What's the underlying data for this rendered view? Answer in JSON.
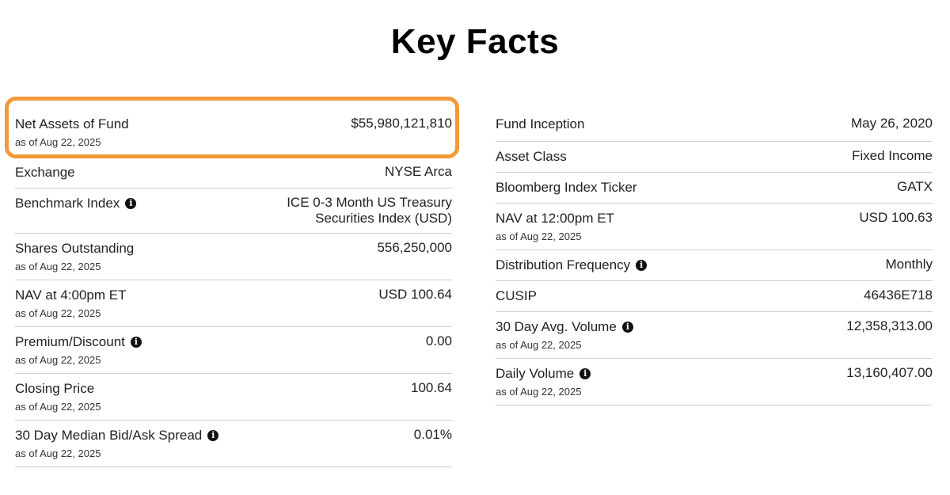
{
  "page": {
    "title": "Key Facts"
  },
  "highlight_color": "#f19a38",
  "left": {
    "rows": [
      {
        "label": "Net Assets of Fund",
        "asof": "as of Aug 22, 2025",
        "value": "$55,980,121,810",
        "info": false
      },
      {
        "label": "Exchange",
        "asof": "",
        "value": "NYSE Arca",
        "info": false
      },
      {
        "label": "Benchmark Index",
        "asof": "",
        "value": "ICE 0-3 Month US Treasury Securities Index (USD)",
        "info": true
      },
      {
        "label": "Shares Outstanding",
        "asof": "as of Aug 22, 2025",
        "value": "556,250,000",
        "info": false
      },
      {
        "label": "NAV at 4:00pm ET",
        "asof": "as of Aug 22, 2025",
        "value": "USD 100.64",
        "info": false
      },
      {
        "label": "Premium/Discount",
        "asof": "as of Aug 22, 2025",
        "value": "0.00",
        "info": true
      },
      {
        "label": "Closing Price",
        "asof": "as of Aug 22, 2025",
        "value": "100.64",
        "info": false
      },
      {
        "label": "30 Day Median Bid/Ask Spread",
        "asof": "as of Aug 22, 2025",
        "value": "0.01%",
        "info": true
      }
    ]
  },
  "right": {
    "rows": [
      {
        "label": "Fund Inception",
        "asof": "",
        "value": "May 26, 2020",
        "info": false
      },
      {
        "label": "Asset Class",
        "asof": "",
        "value": "Fixed Income",
        "info": false
      },
      {
        "label": "Bloomberg Index Ticker",
        "asof": "",
        "value": "GATX",
        "info": false
      },
      {
        "label": "NAV at 12:00pm ET",
        "asof": "as of Aug 22, 2025",
        "value": "USD 100.63",
        "info": false
      },
      {
        "label": "Distribution Frequency",
        "asof": "",
        "value": "Monthly",
        "info": true
      },
      {
        "label": "CUSIP",
        "asof": "",
        "value": "46436E718",
        "info": false
      },
      {
        "label": "30 Day Avg. Volume",
        "asof": "as of Aug 22, 2025",
        "value": "12,358,313.00",
        "info": true
      },
      {
        "label": "Daily Volume",
        "asof": "as of Aug 22, 2025",
        "value": "13,160,407.00",
        "info": true
      }
    ]
  }
}
